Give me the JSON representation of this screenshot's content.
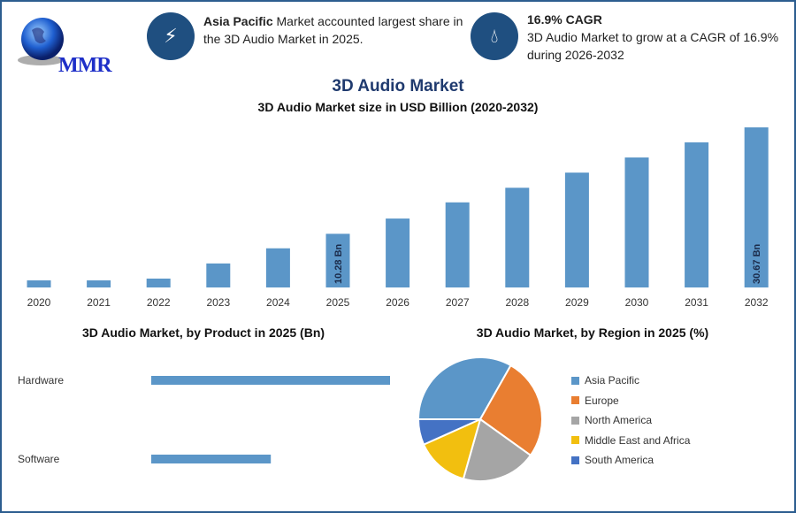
{
  "header": {
    "logo_text": "MMR",
    "insight1": {
      "icon": "lightning-icon",
      "bold": "Asia Pacific",
      "text": " Market accounted largest share in the 3D Audio Market in 2025."
    },
    "insight2": {
      "icon": "flame-icon",
      "bold": "16.9% CAGR",
      "text": "3D Audio Market to grow at a CAGR of 16.9% during 2026-2032"
    }
  },
  "title": "3D Audio Market",
  "colors": {
    "bar": "#5b96c8",
    "frame": "#2c5d8f",
    "icon_bg": "#1f4f80"
  },
  "chart_data": [
    {
      "type": "bar",
      "title": "3D Audio Market size in USD Billion (2020-2032)",
      "categories": [
        "2020",
        "2021",
        "2022",
        "2023",
        "2024",
        "2025",
        "2026",
        "2027",
        "2028",
        "2029",
        "2030",
        "2031",
        "2032"
      ],
      "values": [
        1.36,
        1.36,
        1.7,
        4.6,
        7.5,
        10.28,
        13.2,
        16.3,
        19.1,
        22.0,
        24.9,
        27.8,
        30.67
      ],
      "data_labels": {
        "2025": "10.28 Bn",
        "2032": "30.67 Bn"
      },
      "grid": false
    },
    {
      "type": "bar",
      "orientation": "horizontal",
      "title": "3D Audio Market, by Product in 2025 (Bn)",
      "categories": [
        "Hardware",
        "Software"
      ],
      "values": [
        6.85,
        3.43
      ]
    },
    {
      "type": "pie",
      "title": "3D Audio Market, by Region in 2025 (%)",
      "legend": "right",
      "slices": [
        {
          "label": "Asia Pacific",
          "value": 33.2,
          "color": "#5b96c8"
        },
        {
          "label": "Europe",
          "value": 26.7,
          "color": "#e97e31"
        },
        {
          "label": "North America",
          "value": 19.5,
          "color": "#a5a5a5"
        },
        {
          "label": "Middle East and Africa",
          "value": 13.9,
          "color": "#f2bf0f"
        },
        {
          "label": "South America",
          "value": 6.7,
          "color": "#4472c4"
        }
      ]
    }
  ]
}
